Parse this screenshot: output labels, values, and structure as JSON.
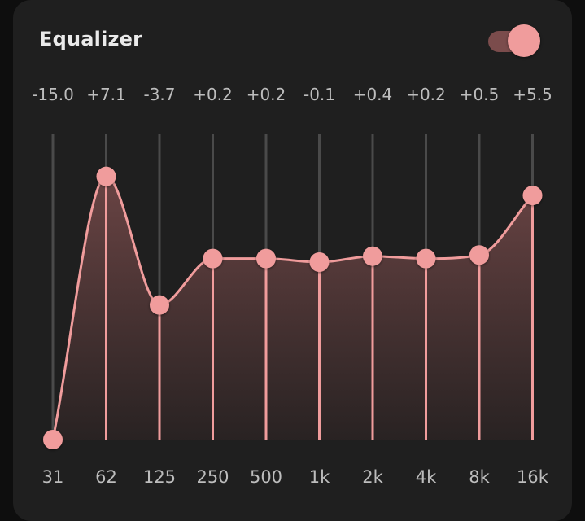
{
  "title": "Equalizer",
  "enabled": true,
  "colors": {
    "accent": "#f09c9c",
    "track": "#4a4a4a",
    "card": "#1f1f1f",
    "toggle_track": "#7b4c4c"
  },
  "gain_range_db": [
    -15,
    12
  ],
  "bands": [
    {
      "freq": "31",
      "gain_label": "-15.0",
      "gain": -15.0
    },
    {
      "freq": "62",
      "gain_label": "+7.1",
      "gain": 7.1
    },
    {
      "freq": "125",
      "gain_label": "-3.7",
      "gain": -3.7
    },
    {
      "freq": "250",
      "gain_label": "+0.2",
      "gain": 0.2
    },
    {
      "freq": "500",
      "gain_label": "+0.2",
      "gain": 0.2
    },
    {
      "freq": "1k",
      "gain_label": "-0.1",
      "gain": -0.1
    },
    {
      "freq": "2k",
      "gain_label": "+0.4",
      "gain": 0.4
    },
    {
      "freq": "4k",
      "gain_label": "+0.2",
      "gain": 0.2
    },
    {
      "freq": "8k",
      "gain_label": "+0.5",
      "gain": 0.5
    },
    {
      "freq": "16k",
      "gain_label": "+5.5",
      "gain": 5.5
    }
  ]
}
